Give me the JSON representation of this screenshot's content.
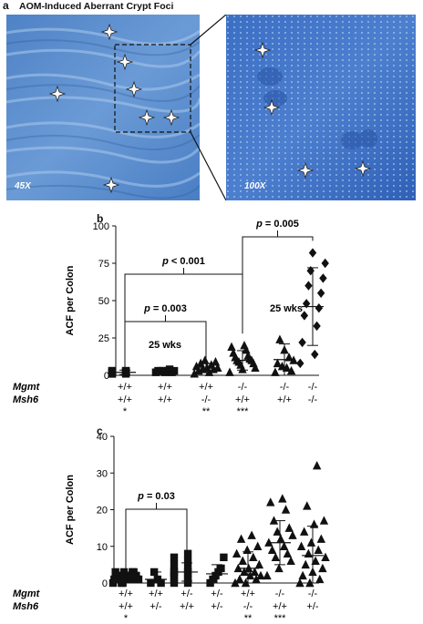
{
  "figure": {
    "panel_a": {
      "label": "a",
      "title": "AOM-Induced Aberrant Crypt Foci",
      "left_magnification": "45X",
      "right_magnification": "100X"
    },
    "panel_b": {
      "label": "b"
    },
    "panel_c": {
      "label": "c"
    }
  },
  "colors": {
    "tissue_left": "#5b8fcf",
    "tissue_right": "#3d6fc4",
    "marker": "#111111"
  },
  "chart_data": [
    {
      "type": "scatter",
      "panel": "b",
      "ylabel": "ACF per Colon",
      "ylim": [
        0,
        100
      ],
      "yticks": [
        0,
        25,
        50,
        75,
        100
      ],
      "genotype_row_labels": [
        "Mgmt",
        "Msh6"
      ],
      "groups": [
        {
          "mgmt": "+/+",
          "msh6": "+/+",
          "note": "*",
          "marker": "square",
          "mean": 2,
          "sd": 1.5,
          "values": [
            1,
            1,
            2,
            2,
            2,
            2,
            2,
            3,
            3,
            3,
            1,
            2,
            3,
            2
          ]
        },
        {
          "mgmt": "+/+",
          "msh6": "+/+",
          "note": "",
          "marker": "square",
          "mean": 3,
          "sd": 1,
          "values": [
            2,
            2,
            3,
            3,
            3,
            3,
            4,
            2,
            3
          ]
        },
        {
          "mgmt": "+/+",
          "msh6": "-/-",
          "note": "**",
          "marker": "triangle",
          "mean": 5,
          "sd": 3,
          "values": [
            1,
            2,
            3,
            4,
            4,
            5,
            5,
            6,
            7,
            8,
            9,
            10
          ]
        },
        {
          "mgmt": "-/-",
          "msh6": "+/+",
          "note": "***",
          "marker": "triangle",
          "mean": 10,
          "sd": 6.5,
          "values": [
            2,
            4,
            5,
            7,
            8,
            9,
            10,
            10,
            11,
            12,
            13,
            15,
            17,
            19,
            20
          ]
        },
        {
          "mgmt": "-/-",
          "msh6": "+/+",
          "note": "",
          "marker": "triangle",
          "mean": 10.5,
          "sd": 10.5,
          "values": [
            2,
            3,
            5,
            6,
            8,
            10,
            12,
            17,
            24
          ]
        },
        {
          "mgmt": "-/-",
          "msh6": "-/-",
          "note": "",
          "marker": "diamond",
          "mean": 46,
          "sd": 26,
          "values": [
            8,
            14,
            22,
            33,
            40,
            45,
            48,
            55,
            60,
            65,
            70,
            75,
            82
          ]
        }
      ],
      "annotations": [
        {
          "text": "p = 0.003",
          "from_group": 0,
          "to_group": 2
        },
        {
          "text": "p < 0.001",
          "from_group": 0,
          "to_group": 3
        },
        {
          "text": "p = 0.005",
          "from_group": 3,
          "to_group": 5
        },
        {
          "text": "25 wks",
          "group": 1
        },
        {
          "text": "25 wks",
          "group": 4
        }
      ]
    },
    {
      "type": "scatter",
      "panel": "c",
      "ylabel": "ACF per Colon",
      "ylim": [
        0,
        40
      ],
      "yticks": [
        0,
        10,
        20,
        30,
        40
      ],
      "genotype_row_labels": [
        "Mgmt",
        "Msh6"
      ],
      "groups": [
        {
          "mgmt": "+/+",
          "msh6": "+/+",
          "note": "*",
          "marker": "square",
          "mean": 1.5,
          "sd": 1,
          "values": [
            0,
            0,
            1,
            1,
            1,
            1,
            1,
            1,
            2,
            2,
            2,
            2,
            2,
            2,
            2,
            3,
            3,
            3,
            3,
            1,
            0,
            2
          ]
        },
        {
          "mgmt": "+/+",
          "msh6": "+/-",
          "note": "",
          "marker": "square",
          "mean": 1,
          "sd": 2,
          "values": [
            0,
            0,
            1,
            3
          ]
        },
        {
          "mgmt": "+/-",
          "msh6": "+/+",
          "note": "",
          "marker": "square",
          "mean": 3,
          "sd": 2.5,
          "values": [
            0,
            0,
            1,
            1,
            2,
            2,
            3,
            3,
            3,
            4,
            5,
            6,
            7,
            8
          ]
        },
        {
          "mgmt": "+/-",
          "msh6": "+/-",
          "note": "",
          "marker": "square",
          "mean": 2.5,
          "sd": 2.5,
          "values": [
            0,
            1,
            2,
            3,
            4,
            7
          ]
        },
        {
          "mgmt": "+/+",
          "msh6": "-/-",
          "note": "**",
          "marker": "triangle",
          "mean": 4,
          "sd": 4.5,
          "values": [
            0,
            0,
            1,
            1,
            2,
            2,
            3,
            3,
            4,
            4,
            5,
            6,
            7,
            8,
            9,
            10,
            12,
            13
          ]
        },
        {
          "mgmt": "-/-",
          "msh6": "+/+",
          "note": "***",
          "marker": "triangle",
          "mean": 11,
          "sd": 6,
          "values": [
            2,
            4,
            6,
            7,
            8,
            9,
            10,
            11,
            12,
            13,
            14,
            15,
            17,
            20,
            22,
            23
          ]
        },
        {
          "mgmt": "-/-",
          "msh6": "+/-",
          "note": "",
          "marker": "triangle",
          "mean": 7.5,
          "sd": 8,
          "values": [
            0,
            0,
            1,
            2,
            3,
            4,
            5,
            6,
            7,
            8,
            9,
            10,
            11,
            12,
            14,
            16,
            17,
            21,
            32
          ]
        }
      ],
      "annotations": [
        {
          "text": "p = 0.03",
          "from_group": 0,
          "to_group": 2
        }
      ]
    }
  ]
}
